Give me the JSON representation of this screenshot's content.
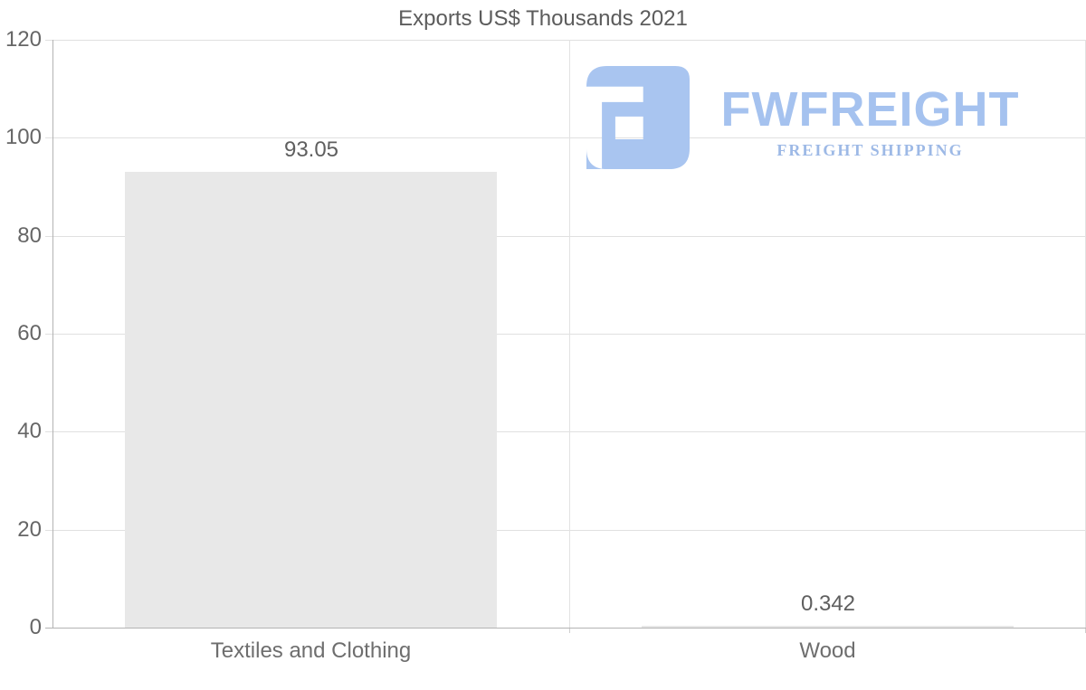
{
  "chart_data": {
    "type": "bar",
    "title": "Exports US$ Thousands 2021",
    "categories": [
      "Textiles and Clothing",
      "Wood"
    ],
    "values": [
      93.05,
      0.342
    ],
    "value_labels": [
      "93.05",
      "0.342"
    ],
    "xlabel": "",
    "ylabel": "",
    "ylim": [
      0,
      120
    ],
    "yticks": [
      0,
      20,
      40,
      60,
      80,
      100,
      120
    ],
    "grid": true,
    "legend_position": "none",
    "bar_color": "#e8e8e8",
    "grid_color": "#e0e0e0",
    "axis_color": "#b3b3b3",
    "tick_label_color": "#666666",
    "title_color": "#5c5c5c"
  },
  "watermark": {
    "brand": "FWFREIGHT",
    "tagline": "FREIGHT SHIPPING",
    "logo_color": "#a9c5f0",
    "brand_color": "#a5c2ef",
    "tagline_color": "#9db9e6"
  }
}
